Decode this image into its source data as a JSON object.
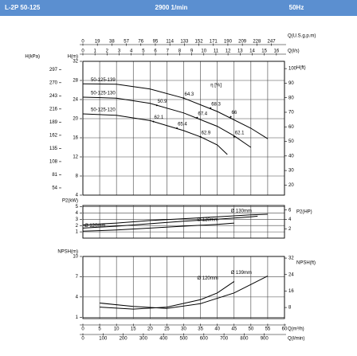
{
  "header": {
    "model": "L-2P 50-125",
    "speed": "2900 1/min",
    "frequency": "50Hz"
  },
  "chart_data": [
    {
      "type": "line",
      "x_axes": [
        {
          "label": "Q(U.S.g.p.m)",
          "side": "top",
          "lim": [
            0,
            264.2
          ],
          "ticks": [
            0,
            19,
            38,
            57,
            76,
            95,
            114,
            133,
            152,
            171,
            190,
            209,
            228,
            247
          ]
        },
        {
          "label": "Q(l/s)",
          "side": "top",
          "lim": [
            0,
            16.67
          ],
          "ticks": [
            0,
            1,
            2,
            3,
            4,
            5,
            6,
            7,
            8,
            9,
            10,
            11,
            12,
            13,
            14,
            15,
            16
          ]
        }
      ],
      "y_axes": [
        {
          "label": "H(kPa)",
          "side": "left",
          "lim": [
            39.2,
            313.8
          ],
          "ticks": [
            54,
            81,
            108,
            135,
            162,
            189,
            216,
            243,
            270,
            297
          ]
        },
        {
          "label": "H(m)",
          "side": "left",
          "lim": [
            4,
            32
          ],
          "ticks": [
            4,
            8,
            12,
            16,
            20,
            24,
            28,
            32
          ],
          "grid": true
        },
        {
          "label": "H(ft)",
          "side": "right",
          "lim": [
            13.1,
            105
          ],
          "ticks": [
            20,
            30,
            40,
            50,
            60,
            70,
            80,
            90,
            100
          ]
        }
      ],
      "series": [
        {
          "name": "50-125-139",
          "color": "#000000",
          "axis": 1,
          "label_at": "start",
          "x": [
            0,
            10,
            20,
            30,
            40,
            50,
            55
          ],
          "values": [
            27.3,
            27.2,
            26.2,
            24.3,
            21.5,
            18,
            15.8
          ]
        },
        {
          "name": "50-125-130",
          "color": "#000000",
          "axis": 1,
          "label_at": "start",
          "x": [
            0,
            10,
            20,
            30,
            40,
            45,
            50
          ],
          "values": [
            24.5,
            24.3,
            23.2,
            21.2,
            18.4,
            16.4,
            14
          ]
        },
        {
          "name": "50-125-120",
          "color": "#000000",
          "axis": 1,
          "label_at": "start",
          "x": [
            0,
            10,
            20,
            30,
            35,
            40,
            43
          ],
          "values": [
            21,
            20.7,
            19.6,
            17.5,
            16.2,
            14.5,
            12.5
          ]
        }
      ],
      "efficiency": {
        "label": "η [%]",
        "x": [
          22,
          30,
          38,
          44,
          21,
          34,
          28,
          35,
          45
        ],
        "y": [
          22.8,
          24.3,
          22.2,
          20.4,
          19.4,
          20.2,
          18,
          16.2,
          16.2
        ],
        "values": [
          50.9,
          64.3,
          68.3,
          66,
          62.1,
          67.4,
          65.4,
          62.9,
          62.1
        ]
      }
    },
    {
      "type": "line",
      "x_axes": [],
      "y_axes": [
        {
          "label": "P2(kW)",
          "side": "left",
          "lim": [
            0,
            5.2
          ],
          "ticks": [
            1,
            2,
            3,
            4,
            5
          ],
          "grid": true
        },
        {
          "label": "P2(HP)",
          "side": "right",
          "lim": [
            0,
            6.97
          ],
          "ticks": [
            2,
            4,
            6
          ]
        }
      ],
      "series": [
        {
          "name": "Ø 130mm",
          "color": "#000000",
          "axis": 0,
          "label_at": "end",
          "x": [
            0,
            10,
            20,
            30,
            40,
            50,
            55
          ],
          "values": [
            2.1,
            2.4,
            2.8,
            3.1,
            3.4,
            3.7,
            3.8
          ]
        },
        {
          "name": "Ø 120mm",
          "color": "#000000",
          "axis": 0,
          "label_at": "start",
          "x": [
            0,
            10,
            20,
            30,
            40,
            50,
            52
          ],
          "values": [
            1.6,
            1.9,
            2.3,
            2.7,
            3.0,
            3.4,
            3.5
          ]
        },
        {
          "name": "Ø 120mm",
          "color": "#000000",
          "axis": 0,
          "label_at": "end",
          "x": [
            0,
            10,
            20,
            30,
            40,
            45
          ],
          "values": [
            1.1,
            1.3,
            1.6,
            1.9,
            2.2,
            2.4
          ]
        }
      ]
    },
    {
      "type": "line",
      "x_axes": [
        {
          "label": "Q(m³/h)",
          "side": "bottom",
          "lim": [
            0,
            60
          ],
          "ticks": [
            0,
            5,
            10,
            15,
            20,
            25,
            30,
            35,
            40,
            45,
            50,
            55,
            60
          ],
          "grid": true
        },
        {
          "label": "Q(l/min)",
          "side": "bottom",
          "lim": [
            0,
            1000
          ],
          "ticks": [
            0,
            100,
            200,
            300,
            400,
            500,
            600,
            700,
            800,
            900
          ]
        }
      ],
      "y_axes": [
        {
          "label": "NPSH(m)",
          "side": "left",
          "lim": [
            0.8,
            10
          ],
          "ticks": [
            1,
            4,
            7,
            10
          ],
          "grid": true
        },
        {
          "label": "NPSH(ft)",
          "side": "right",
          "lim": [
            2.62,
            32.8
          ],
          "ticks": [
            8,
            16,
            24,
            32
          ]
        }
      ],
      "series": [
        {
          "name": "Ø 120mm",
          "color": "#000000",
          "axis": 0,
          "label_at": "end",
          "x": [
            5,
            15,
            25,
            35,
            40,
            45
          ],
          "values": [
            2.5,
            2.2,
            2.5,
            3.6,
            4.6,
            6.3
          ]
        },
        {
          "name": "Ø 139mm",
          "color": "#000000",
          "axis": 0,
          "label_at": "end",
          "x": [
            5,
            15,
            25,
            35,
            45,
            55
          ],
          "values": [
            3.1,
            2.6,
            2.3,
            3.0,
            4.6,
            7.1
          ]
        }
      ]
    }
  ]
}
